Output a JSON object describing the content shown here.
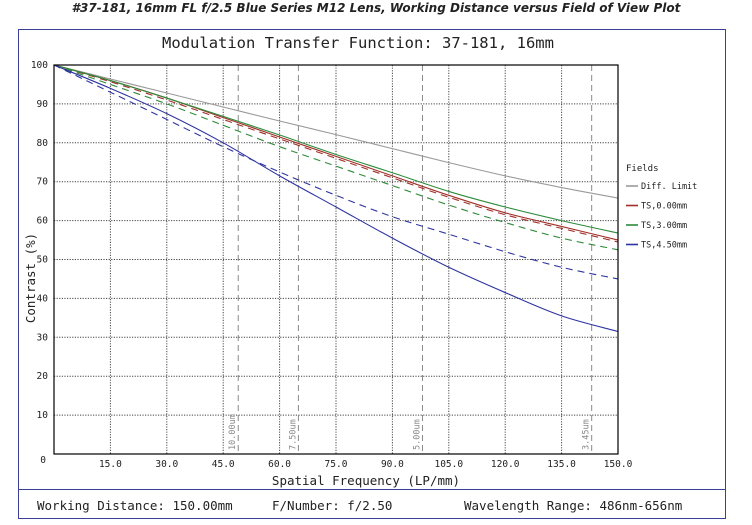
{
  "figure_title": "#37-181, 16mm FL f/2.5 Blue Series M12 Lens, Working Distance versus Field of View Plot",
  "footer": {
    "working_distance": "Working Distance: 150.00mm",
    "f_number": "F/Number: f/2.50",
    "wavelength": "Wavelength Range: 486nm-656nm"
  },
  "colors": {
    "frame": "#3a3f9a",
    "diff": "#9a9a9a",
    "ts0": "#a0302a",
    "ts3": "#2e8b3a",
    "ts45": "#2f35a0"
  },
  "chart_data": {
    "type": "line",
    "title": "Modulation Transfer Function: 37-181, 16mm",
    "xlabel": "Spatial Frequency (LP/mm)",
    "ylabel": "Contrast (%)",
    "xlim": [
      0,
      150
    ],
    "ylim": [
      0,
      100
    ],
    "x_ticks": [
      15,
      30,
      45,
      60,
      75,
      90,
      105,
      120,
      135,
      150
    ],
    "x_tick_labels": [
      "15.0",
      "30.0",
      "45.0",
      "60.0",
      "75.0",
      "90.0",
      "105.0",
      "120.0",
      "135.0",
      "150.0"
    ],
    "y_ticks": [
      0,
      10,
      20,
      30,
      40,
      50,
      60,
      70,
      80,
      90,
      100
    ],
    "y_tick_labels": [
      "0",
      "10",
      "20",
      "30",
      "40",
      "50",
      "60",
      "70",
      "80",
      "90",
      "100"
    ],
    "grid": true,
    "legend_title": "Fields",
    "legend_position": "right",
    "markers": [
      {
        "x": 49,
        "label": "10.00um"
      },
      {
        "x": 65,
        "label": "7.50um"
      },
      {
        "x": 98,
        "label": "5.00um"
      },
      {
        "x": 143,
        "label": "3.45um"
      }
    ],
    "x": [
      0,
      15,
      30,
      45,
      60,
      75,
      90,
      105,
      120,
      135,
      150
    ],
    "series": [
      {
        "name": "Diff. Limit",
        "color": "#9a9a9a",
        "style": "solid",
        "values": [
          100,
          96.4,
          92.8,
          89.2,
          85.6,
          82.1,
          78.5,
          74.9,
          71.5,
          68.5,
          65.8
        ]
      },
      {
        "name": "TS,0.00mm",
        "color": "#a0302a",
        "style": "solid",
        "values": [
          100,
          96.0,
          91.5,
          86.5,
          81.5,
          76.5,
          71.5,
          66.5,
          62.0,
          58.5,
          55.0
        ]
      },
      {
        "name": "TS,0.00mm",
        "color": "#a0302a",
        "style": "dashed",
        "values": [
          100,
          95.7,
          91.0,
          86.0,
          81.0,
          76.0,
          71.0,
          66.0,
          61.5,
          58.0,
          54.5
        ]
      },
      {
        "name": "TS,3.00mm",
        "color": "#2e8b3a",
        "style": "solid",
        "values": [
          100,
          96.0,
          91.5,
          86.8,
          82.0,
          77.0,
          72.3,
          67.5,
          63.5,
          60.0,
          56.8
        ]
      },
      {
        "name": "TS,3.00mm",
        "color": "#2e8b3a",
        "style": "dashed",
        "values": [
          100,
          95.0,
          90.0,
          84.5,
          79.0,
          74.0,
          69.0,
          64.0,
          59.5,
          55.5,
          52.5
        ]
      },
      {
        "name": "TS,4.50mm",
        "color": "#2f35a0",
        "style": "solid",
        "values": [
          100,
          94.0,
          87.5,
          80.0,
          71.5,
          63.5,
          55.5,
          48.0,
          41.5,
          35.5,
          31.5
        ]
      },
      {
        "name": "TS,4.50mm",
        "color": "#2f35a0",
        "style": "dashed",
        "values": [
          100,
          93.0,
          86.0,
          79.0,
          72.5,
          66.5,
          61.0,
          56.5,
          52.0,
          48.0,
          45.0
        ]
      }
    ],
    "legend": [
      {
        "name": "Diff. Limit",
        "color": "#9a9a9a"
      },
      {
        "name": "TS,0.00mm",
        "color": "#a0302a"
      },
      {
        "name": "TS,3.00mm",
        "color": "#2e8b3a"
      },
      {
        "name": "TS,4.50mm",
        "color": "#2f35a0"
      }
    ]
  }
}
